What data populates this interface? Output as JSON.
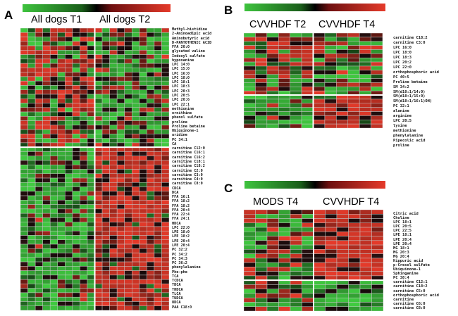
{
  "panels": {
    "A": {
      "letter": "A",
      "groups": [
        "All dogs T1",
        "All dogs T2"
      ]
    },
    "B": {
      "letter": "B",
      "groups": [
        "CVVHDF T2",
        "CVVHDF T4"
      ]
    },
    "C": {
      "letter": "C",
      "groups": [
        "MODS T4",
        "CVVHDF T4"
      ]
    }
  },
  "colors": {
    "low": "#3ec33e",
    "mid": "#000000",
    "high": "#e53a2a"
  },
  "chart_data": [
    {
      "type": "heatmap",
      "panel": "A",
      "groups": [
        "All dogs T1",
        "All dogs T2"
      ],
      "color_scale": [
        "green (low)",
        "black",
        "red (high)"
      ],
      "rows": [
        "Methyl-histidine",
        "2-Aminoadipic acid",
        "Aminobutyric acid",
        "D-PANTOTHENIC ACID",
        "FFA 20:0",
        "glycated valine",
        "Indoxyl sulfate",
        "hypoxanine",
        "LPC 14:0",
        "LPC 15:0",
        "LPC 16:0",
        "LPC 18:0",
        "LPC 18:1",
        "LPC 18:3",
        "LPC 20:3",
        "LPC 20:5",
        "LPC 20:6",
        "LPC 22:1",
        "methionine",
        "ornithine",
        "phenol sulfate",
        "proline",
        "Proline betaine",
        "Ubiquinone-1",
        "uridine",
        "PC 34:1",
        "CA",
        "carnitine C12:0",
        "carnitine C16:1",
        "carnitine C16:2",
        "carnitine C18:1",
        "carnitine C18:2",
        "carnitine C2:0",
        "carnitine C3:0",
        "carnitine C4:0",
        "carnitine C8:0",
        "CDCA",
        "DCA",
        "FFA 16:1",
        "FFA 18:2",
        "FFA 18:2",
        "FFA 20:4",
        "FFA 22:4",
        "FFA 24:1",
        "HDCA",
        "LPC 22:0",
        "LPE 18:0",
        "LPE 18:2",
        "LPE 20:4",
        "LPE 20:4",
        "PC 32:2",
        "PC 34:2",
        "PC 34:3",
        "PC 36:2",
        "phenylalanine",
        "Phe-phe",
        "TCA",
        "TCDCA",
        "TDCA",
        "THDCA",
        "TLCA",
        "TUDCA",
        "UDCA",
        "PAA C18:0"
      ]
    },
    {
      "type": "heatmap",
      "panel": "B",
      "groups": [
        "CVVHDF T2",
        "CVVHDF T4"
      ],
      "color_scale": [
        "green (low)",
        "black",
        "red (high)"
      ],
      "rows": [
        "carnitine C18:2",
        "carnitine C3:0",
        "LPC 16:0",
        "LPC 18:0",
        "LPC 18:3",
        "LPC 20:2",
        "LPC 22:0",
        "orthophosphoric acid",
        "PC 40:5",
        "Proline betaine",
        "SM 34:2",
        "SM(d18:1/14:0)",
        "SM(d18:1/15:0)",
        "SM(d18:1/16:1)OH)",
        "PC 32:1",
        "alanine",
        "arginine",
        "LPC 20:5",
        "lysine",
        "methionine",
        "phenylalanine",
        "Pipecolic acid",
        "proline"
      ]
    },
    {
      "type": "heatmap",
      "panel": "C",
      "groups": [
        "MODS T4",
        "CVVHDF T4"
      ],
      "color_scale": [
        "green (low)",
        "black",
        "red (high)"
      ],
      "rows": [
        "Citric acid",
        "Choline",
        "LPC 18:1",
        "LPC 20:5",
        "LPC 22:5",
        "LPE 18:1",
        "LPE 20:4",
        "LPE 20:4",
        "MG 18:1",
        "MG 20:3",
        "MG 20:4",
        "Hippuric acid",
        "p-Cresol sulfate",
        "Ubiquinone-1",
        "Sphinganine",
        "PC 38:4",
        "carnitine C12:1",
        "carnitine C18:2",
        "carnitine C5:0",
        "orthophosphoric acid",
        "carnitine",
        "carnitine C6:0",
        "carnitine C8:0"
      ]
    }
  ]
}
